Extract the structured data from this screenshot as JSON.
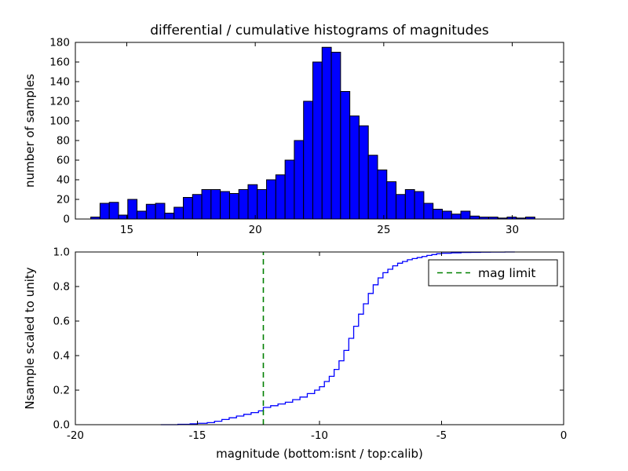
{
  "colors": {
    "background": "#ffffff",
    "axes": "#000000",
    "histogram_blue": "#0000ff",
    "mag_limit_green": "#008000"
  },
  "chart_data": [
    {
      "type": "bar",
      "title": "differential / cumulative histograms of magnitudes",
      "xlabel": "",
      "ylabel": "number of samples",
      "xlim": [
        13,
        32
      ],
      "ylim": [
        0,
        180
      ],
      "grid": false,
      "xtick_values": [
        15,
        20,
        25,
        30
      ],
      "xtick_labels": [
        "15",
        "20",
        "25",
        "30"
      ],
      "ytick_values": [
        0,
        20,
        40,
        60,
        80,
        100,
        120,
        140,
        160,
        180
      ],
      "ytick_labels": [
        "0",
        "20",
        "40",
        "60",
        "80",
        "100",
        "120",
        "140",
        "160",
        "180"
      ],
      "bins_start": 13.6,
      "bin_width": 0.36,
      "values": [
        2,
        16,
        17,
        4,
        20,
        8,
        15,
        16,
        6,
        12,
        22,
        25,
        30,
        30,
        28,
        26,
        30,
        35,
        30,
        40,
        45,
        60,
        80,
        120,
        160,
        175,
        170,
        130,
        105,
        95,
        65,
        50,
        38,
        25,
        30,
        28,
        16,
        10,
        8,
        5,
        8,
        3,
        2,
        2,
        1,
        2,
        1,
        2
      ],
      "bar_color": "#0000ff",
      "bar_edge_color": "#000000"
    },
    {
      "type": "line",
      "style": "step",
      "title": "",
      "xlabel": "magnitude (bottom:isnt / top:calib)",
      "ylabel": "Nsample scaled to unity",
      "xlim": [
        -20,
        0
      ],
      "ylim": [
        0.0,
        1.0
      ],
      "grid": false,
      "xtick_values": [
        -20,
        -15,
        -10,
        -5,
        0
      ],
      "xtick_labels": [
        "-20",
        "-15",
        "-10",
        "-5",
        "0"
      ],
      "ytick_values": [
        0.0,
        0.2,
        0.4,
        0.6,
        0.8,
        1.0
      ],
      "ytick_labels": [
        "0.0",
        "0.2",
        "0.4",
        "0.6",
        "0.8",
        "1.0"
      ],
      "x": [
        -16.5,
        -15.8,
        -15.3,
        -15.0,
        -14.6,
        -14.3,
        -14.0,
        -13.7,
        -13.4,
        -13.1,
        -12.8,
        -12.5,
        -12.3,
        -12.0,
        -11.7,
        -11.4,
        -11.1,
        -10.8,
        -10.5,
        -10.2,
        -10.0,
        -9.8,
        -9.6,
        -9.4,
        -9.2,
        -9.0,
        -8.8,
        -8.6,
        -8.4,
        -8.2,
        -8.0,
        -7.8,
        -7.6,
        -7.4,
        -7.2,
        -7.0,
        -6.8,
        -6.6,
        -6.4,
        -6.2,
        -6.0,
        -5.8,
        -5.6,
        -5.4,
        -5.2,
        -5.0,
        -4.6,
        -4.2,
        -3.8,
        -3.4,
        -3.0,
        -2.4,
        -2.0
      ],
      "y": [
        0.0,
        0.002,
        0.005,
        0.008,
        0.012,
        0.02,
        0.03,
        0.04,
        0.05,
        0.06,
        0.07,
        0.08,
        0.1,
        0.11,
        0.12,
        0.13,
        0.145,
        0.16,
        0.18,
        0.2,
        0.22,
        0.25,
        0.28,
        0.32,
        0.37,
        0.43,
        0.5,
        0.57,
        0.64,
        0.7,
        0.76,
        0.81,
        0.85,
        0.88,
        0.9,
        0.92,
        0.935,
        0.945,
        0.955,
        0.962,
        0.968,
        0.974,
        0.98,
        0.985,
        0.99,
        0.993,
        0.995,
        0.997,
        0.998,
        0.999,
        0.9995,
        1.0,
        1.0
      ],
      "line_color": "#0000ff",
      "mag_limit": {
        "x": -12.3,
        "color": "#008000",
        "dash": true
      },
      "legend_label": "mag limit",
      "legend_position": "upper right"
    }
  ]
}
